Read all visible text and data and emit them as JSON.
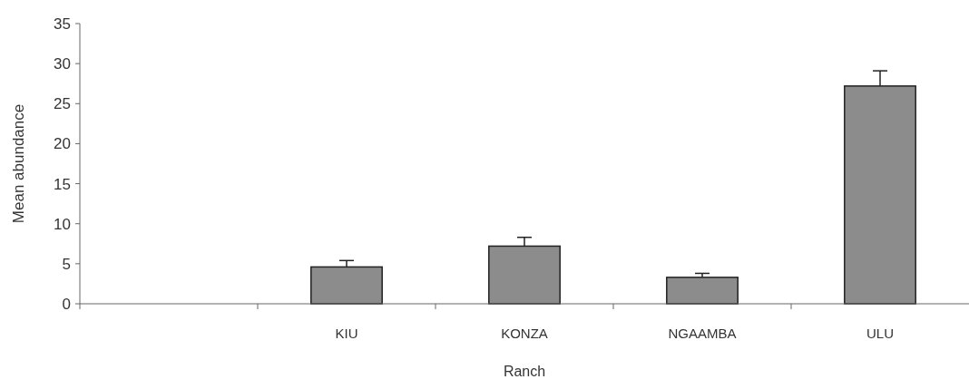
{
  "chart_data": {
    "type": "bar",
    "xlabel": "Ranch",
    "ylabel": "Mean abundance",
    "categories": [
      null,
      "KIU",
      "KONZA",
      "NGAAMBA",
      "ULU"
    ],
    "values": [
      null,
      4.6,
      7.2,
      3.3,
      27.2
    ],
    "errors": [
      null,
      [
        4.6,
        5.4
      ],
      [
        7.2,
        8.3
      ],
      [
        3.3,
        3.8
      ],
      [
        27.2,
        29.1
      ]
    ],
    "color": "#8c8c8c",
    "ylim": [
      0,
      35
    ],
    "yticks": [
      0,
      5,
      10,
      15,
      20,
      25,
      30,
      35
    ],
    "grid": false
  }
}
